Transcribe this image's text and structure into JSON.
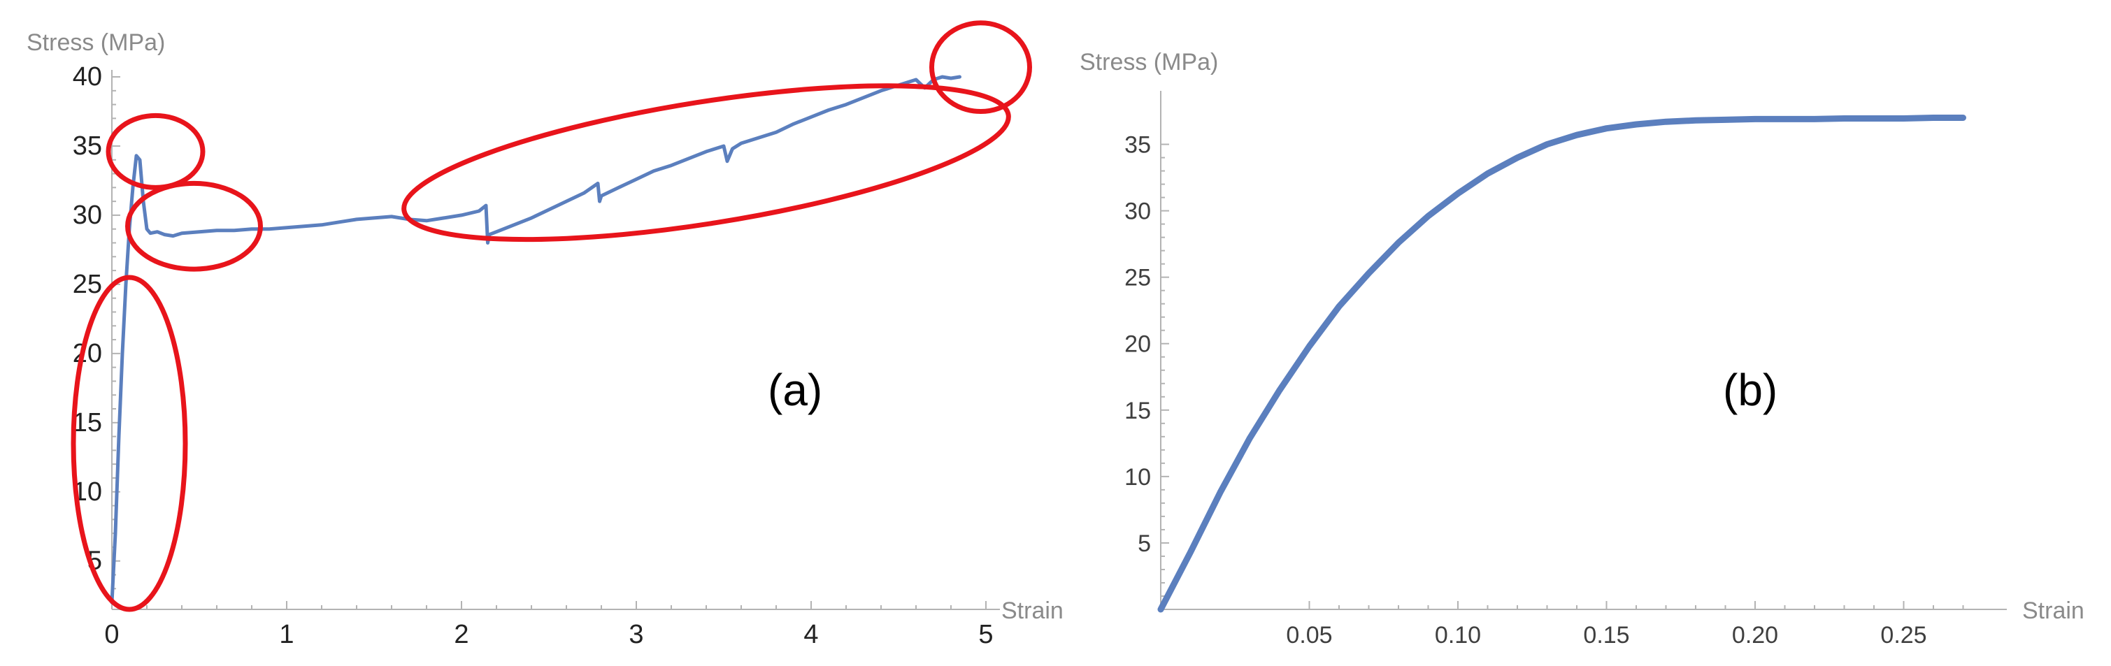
{
  "colors": {
    "series": "#5b7fbe",
    "highlight": "#e8141b",
    "axis": "#b3b3b3"
  },
  "chart_data": [
    {
      "type": "line",
      "panel_label": "(a)",
      "title": "",
      "xlabel": "Strain",
      "ylabel": "Stress (MPa)",
      "xlim": [
        0,
        5
      ],
      "ylim": [
        1.5,
        40
      ],
      "xticks": [
        0,
        1,
        2,
        3,
        4,
        5
      ],
      "xtick_labels": [
        "0",
        "1",
        "2",
        "3",
        "4",
        "5"
      ],
      "yticks": [
        5,
        10,
        15,
        20,
        25,
        30,
        35,
        40
      ],
      "ytick_labels": [
        "5",
        "10",
        "15",
        "20",
        "25",
        "30",
        "35",
        "40"
      ],
      "grid": false,
      "series": [
        {
          "x": [
            0.0,
            0.02,
            0.04,
            0.06,
            0.08,
            0.1,
            0.12,
            0.14,
            0.16,
            0.18,
            0.2,
            0.22,
            0.26,
            0.3,
            0.35,
            0.4,
            0.5,
            0.6,
            0.7,
            0.8,
            0.9,
            1.0,
            1.1,
            1.2,
            1.3,
            1.4,
            1.5,
            1.6,
            1.7,
            1.8,
            1.9,
            2.0,
            2.1,
            2.14,
            2.15,
            2.16,
            2.2,
            2.3,
            2.4,
            2.5,
            2.6,
            2.7,
            2.78,
            2.79,
            2.8,
            2.85,
            2.9,
            3.0,
            3.1,
            3.2,
            3.3,
            3.4,
            3.5,
            3.52,
            3.55,
            3.6,
            3.7,
            3.8,
            3.9,
            4.0,
            4.1,
            4.2,
            4.3,
            4.4,
            4.5,
            4.6,
            4.65,
            4.7,
            4.75,
            4.8,
            4.85
          ],
          "y": [
            2,
            7,
            14,
            20,
            25,
            29,
            32,
            34.3,
            34,
            31,
            29,
            28.7,
            28.8,
            28.6,
            28.5,
            28.7,
            28.8,
            28.9,
            28.9,
            29.0,
            29.0,
            29.1,
            29.2,
            29.3,
            29.5,
            29.7,
            29.8,
            29.9,
            29.7,
            29.6,
            29.8,
            30.0,
            30.3,
            30.7,
            28.0,
            28.6,
            28.8,
            29.3,
            29.8,
            30.4,
            31.0,
            31.6,
            32.3,
            31.0,
            31.4,
            31.7,
            32.0,
            32.6,
            33.2,
            33.6,
            34.1,
            34.6,
            35.0,
            33.9,
            34.8,
            35.2,
            35.6,
            36.0,
            36.6,
            37.1,
            37.6,
            38.0,
            38.5,
            39.0,
            39.4,
            39.8,
            39.2,
            39.8,
            40.0,
            39.9,
            40.0
          ]
        }
      ]
    },
    {
      "type": "line",
      "panel_label": "(b)",
      "title": "",
      "xlabel": "Strain",
      "ylabel": "Stress (MPa)",
      "xlim": [
        0,
        0.28
      ],
      "ylim": [
        0,
        38.5
      ],
      "xticks": [
        0.05,
        0.1,
        0.15,
        0.2,
        0.25
      ],
      "xtick_labels": [
        "0.05",
        "0.10",
        "0.15",
        "0.20",
        "0.25"
      ],
      "yticks": [
        5,
        10,
        15,
        20,
        25,
        30,
        35
      ],
      "ytick_labels": [
        "5",
        "10",
        "15",
        "20",
        "25",
        "30",
        "35"
      ],
      "grid": false,
      "series": [
        {
          "x": [
            0.0,
            0.01,
            0.02,
            0.03,
            0.04,
            0.05,
            0.06,
            0.07,
            0.08,
            0.09,
            0.1,
            0.11,
            0.12,
            0.13,
            0.14,
            0.15,
            0.16,
            0.17,
            0.18,
            0.19,
            0.2,
            0.21,
            0.22,
            0.23,
            0.24,
            0.25,
            0.26,
            0.27
          ],
          "y": [
            0.0,
            4.3,
            8.8,
            12.9,
            16.5,
            19.8,
            22.8,
            25.3,
            27.6,
            29.6,
            31.3,
            32.8,
            34.0,
            35.0,
            35.7,
            36.2,
            36.5,
            36.7,
            36.8,
            36.85,
            36.9,
            36.9,
            36.9,
            36.95,
            36.95,
            36.95,
            37.0,
            37.0
          ]
        }
      ],
      "highlights": []
    }
  ],
  "highlights_a": [
    {
      "name": "initial-elastic-region",
      "cx": 0.1,
      "cy": 13.5,
      "rx_strain": 0.32,
      "ry_stress": 12
    },
    {
      "name": "upper-yield-point",
      "cx": 0.25,
      "cy": 34.6,
      "rx_strain": 0.27,
      "ry_stress": 2.6
    },
    {
      "name": "lower-yield-region",
      "cx": 0.47,
      "cy": 29.2,
      "rx_strain": 0.38,
      "ry_stress": 3.1
    },
    {
      "name": "strain-hardening-region",
      "cx": 3.4,
      "cy": 33.8,
      "rx_strain": 1.75,
      "ry_stress": 4.4
    },
    {
      "name": "fracture-point",
      "cx": 4.97,
      "cy": 40.7,
      "rx_strain": 0.28,
      "ry_stress": 3.2
    }
  ]
}
